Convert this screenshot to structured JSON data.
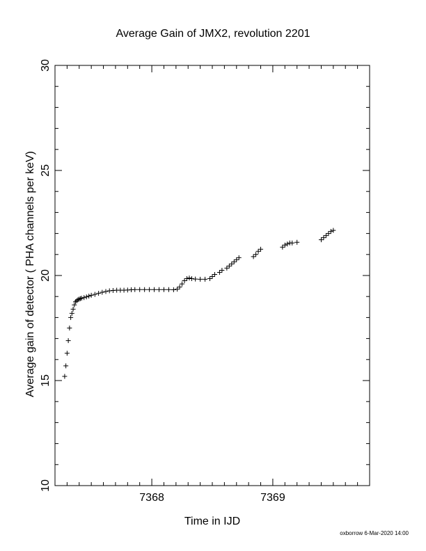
{
  "chart_data": {
    "type": "scatter",
    "title": "Average Gain of JMX2, revolution 2201",
    "xlabel": "Time in IJD",
    "ylabel": "Average gain of detector ( PHA channels per keV)",
    "xlim": [
      7367.2,
      7369.8
    ],
    "ylim": [
      10,
      30
    ],
    "xticks": [
      7368,
      7369
    ],
    "xtick_labels": [
      "7368",
      "7369"
    ],
    "yticks": [
      10,
      15,
      20,
      25,
      30
    ],
    "ytick_labels": [
      "10",
      "15",
      "20",
      "25",
      "30"
    ],
    "marker": "plus",
    "grid": false,
    "legend": "none",
    "series": [
      {
        "x": [
          7367.28,
          7367.29,
          7367.3,
          7367.31,
          7367.32,
          7367.33,
          7367.34,
          7367.35,
          7367.36,
          7367.37,
          7367.38,
          7367.39,
          7367.4,
          7367.41,
          7367.42,
          7367.44,
          7367.46,
          7367.48,
          7367.5,
          7367.53,
          7367.56,
          7367.59,
          7367.62,
          7367.65,
          7367.68,
          7367.71,
          7367.74,
          7367.77,
          7367.8,
          7367.83,
          7367.86,
          7367.9,
          7367.94,
          7367.98,
          7368.02,
          7368.06,
          7368.1,
          7368.14,
          7368.18,
          7368.21,
          7368.23,
          7368.25,
          7368.27,
          7368.29,
          7368.31,
          7368.33,
          7368.36,
          7368.4,
          7368.44,
          7368.48,
          7368.5,
          7368.52,
          7368.56,
          7368.58,
          7368.62,
          7368.64,
          7368.66,
          7368.68,
          7368.7,
          7368.72,
          7368.84,
          7368.86,
          7368.88,
          7368.9,
          7369.08,
          7369.1,
          7369.12,
          7369.14,
          7369.16,
          7369.2,
          7369.4,
          7369.42,
          7369.44,
          7369.46,
          7369.48,
          7369.5
        ],
        "y": [
          15.2,
          15.7,
          16.3,
          16.9,
          17.5,
          18.0,
          18.2,
          18.4,
          18.6,
          18.75,
          18.8,
          18.85,
          18.88,
          18.9,
          18.92,
          18.95,
          18.98,
          19.02,
          19.06,
          19.1,
          19.15,
          19.2,
          19.24,
          19.27,
          19.29,
          19.3,
          19.3,
          19.3,
          19.31,
          19.32,
          19.33,
          19.33,
          19.33,
          19.33,
          19.33,
          19.33,
          19.33,
          19.33,
          19.32,
          19.35,
          19.45,
          19.6,
          19.75,
          19.85,
          19.88,
          19.85,
          19.83,
          19.82,
          19.82,
          19.85,
          19.95,
          20.05,
          20.15,
          20.25,
          20.35,
          20.45,
          20.55,
          20.65,
          20.75,
          20.85,
          20.9,
          21.0,
          21.15,
          21.25,
          21.35,
          21.45,
          21.5,
          21.55,
          21.55,
          21.58,
          21.7,
          21.8,
          21.9,
          22.0,
          22.1,
          22.15
        ]
      }
    ]
  },
  "footer": {
    "credit": "oxborrow  6-Mar-2020 14:00"
  }
}
